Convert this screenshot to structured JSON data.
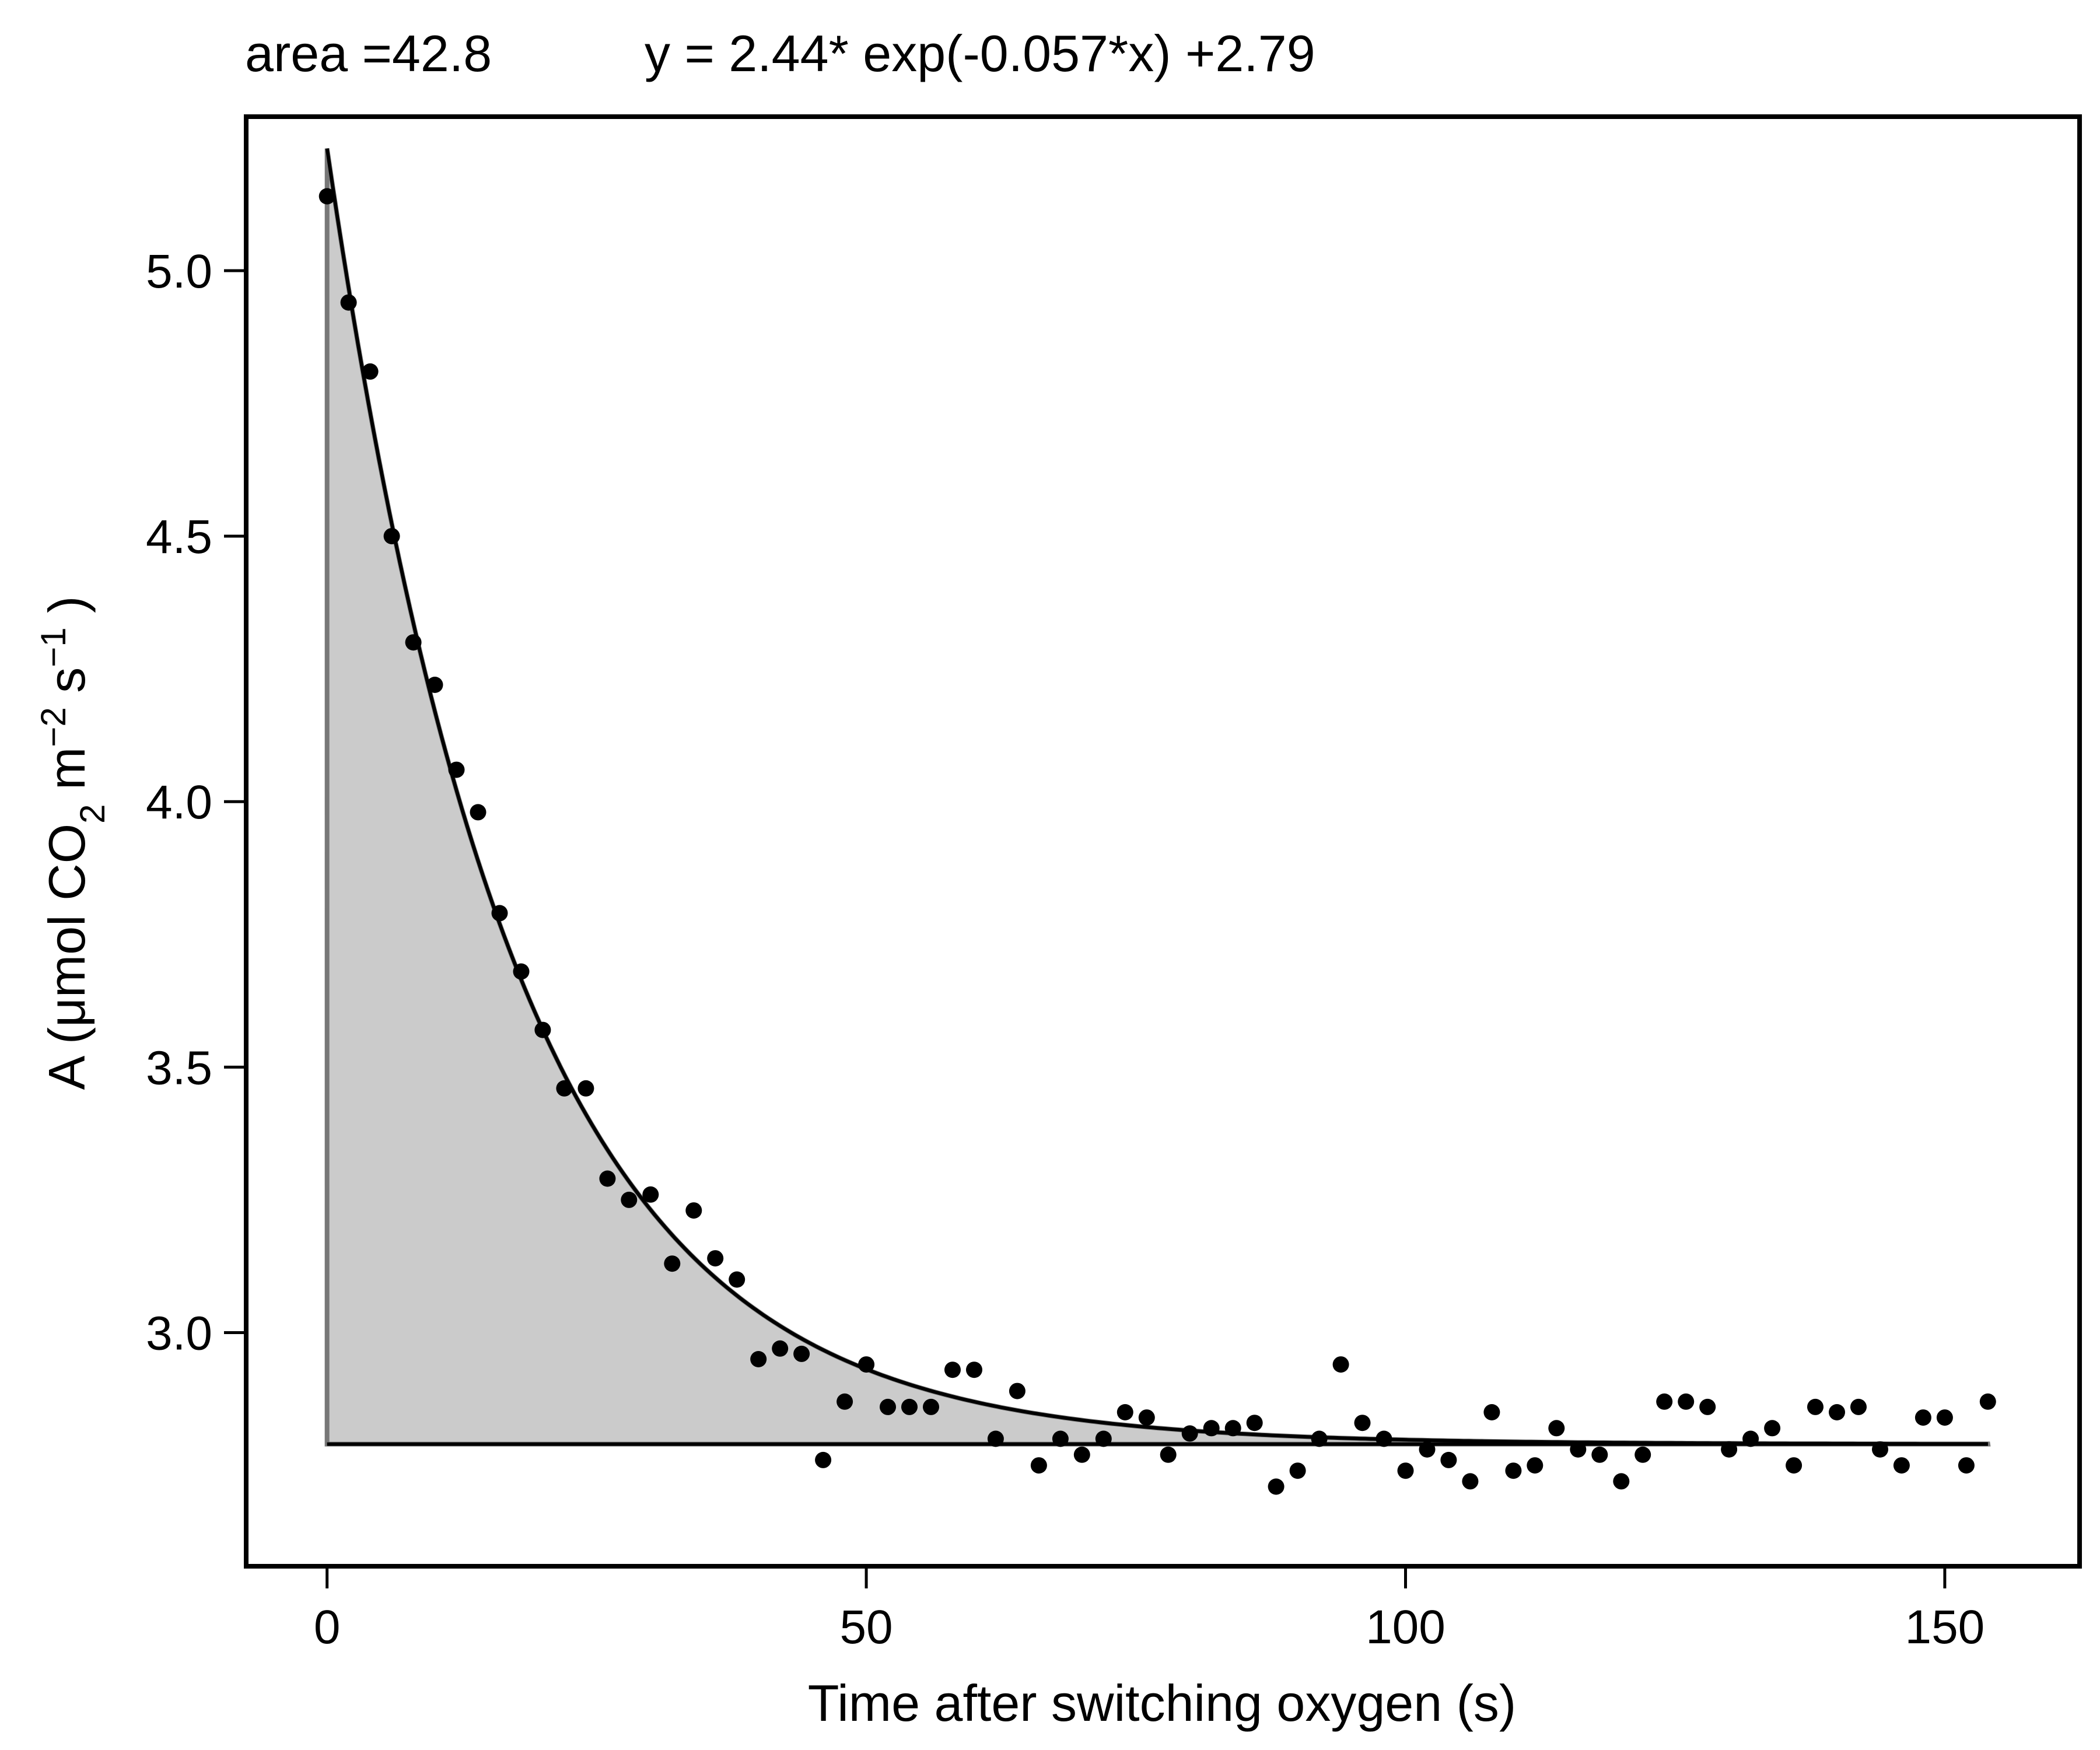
{
  "chart_data": {
    "type": "scatter",
    "header": {
      "area_text": "area =42.8",
      "equation_text": "y = 2.44* exp(-0.057*x) +2.79"
    },
    "xlabel": "Time after switching oxygen (s)",
    "ylabel": {
      "prefix": "A (μmol CO",
      "sub": "2",
      "mid1": " m",
      "sup1": "−2",
      "mid2": " s",
      "sup2": "−1",
      "suffix": " )"
    },
    "xlim": [
      -7.5,
      162.5
    ],
    "ylim": [
      2.56,
      5.29
    ],
    "x_ticks": [
      0,
      50,
      100,
      150
    ],
    "x_tick_labels": [
      "0",
      "50",
      "100",
      "150"
    ],
    "y_ticks": [
      3.0,
      3.5,
      4.0,
      4.5,
      5.0
    ],
    "y_tick_labels": [
      "3.0",
      "3.5",
      "4.0",
      "4.5",
      "5.0"
    ],
    "fit": {
      "a": 2.44,
      "b": 0.057,
      "c": 2.79,
      "x_start": 0,
      "x_end": 154
    },
    "baseline": 2.79,
    "shade_color": "#cbcbcb",
    "point_color": "#000000",
    "points": {
      "x": [
        0,
        2,
        4,
        6,
        8,
        10,
        12,
        14,
        16,
        18,
        20,
        22,
        24,
        26,
        28,
        30,
        32,
        34,
        36,
        38,
        40,
        42,
        44,
        46,
        48,
        50,
        52,
        54,
        56,
        58,
        60,
        62,
        64,
        66,
        68,
        70,
        72,
        74,
        76,
        78,
        80,
        82,
        84,
        86,
        88,
        90,
        92,
        94,
        96,
        98,
        100,
        102,
        104,
        106,
        108,
        110,
        112,
        114,
        116,
        118,
        120,
        122,
        124,
        126,
        128,
        130,
        132,
        134,
        136,
        138,
        140,
        142,
        144,
        146,
        148,
        150,
        152,
        154
      ],
      "y": [
        5.14,
        4.94,
        4.81,
        4.5,
        4.3,
        4.22,
        4.06,
        3.98,
        3.79,
        3.68,
        3.57,
        3.46,
        3.46,
        3.29,
        3.25,
        3.26,
        3.13,
        3.23,
        3.14,
        3.1,
        2.95,
        2.97,
        2.96,
        2.76,
        2.87,
        2.94,
        2.86,
        2.86,
        2.86,
        2.93,
        2.93,
        2.8,
        2.89,
        2.75,
        2.8,
        2.77,
        2.8,
        2.85,
        2.84,
        2.77,
        2.81,
        2.82,
        2.82,
        2.83,
        2.71,
        2.74,
        2.8,
        2.94,
        2.83,
        2.8,
        2.74,
        2.78,
        2.76,
        2.72,
        2.85,
        2.74,
        2.75,
        2.82,
        2.78,
        2.77,
        2.72,
        2.77,
        2.87,
        2.87,
        2.86,
        2.78,
        2.8,
        2.82,
        2.75,
        2.86,
        2.85,
        2.86,
        2.78,
        2.75,
        2.84,
        2.84,
        2.75,
        2.87
      ]
    }
  }
}
